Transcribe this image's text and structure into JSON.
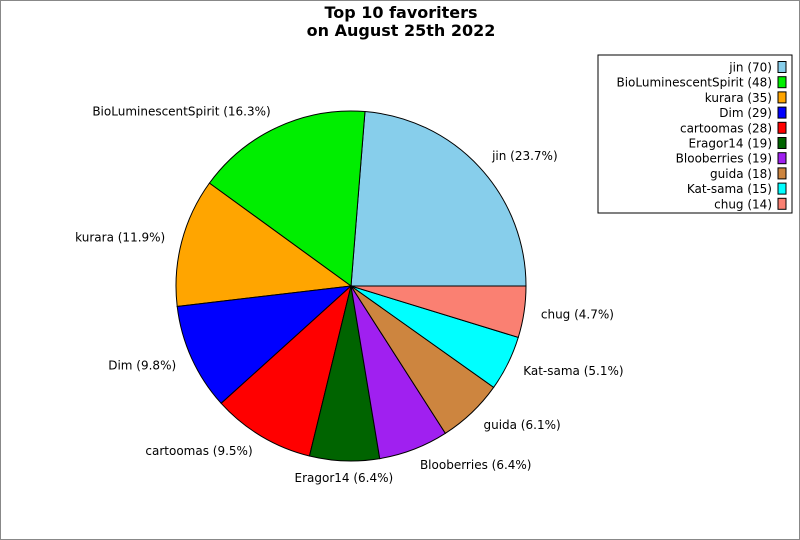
{
  "chart_data": {
    "type": "pie",
    "title": "Top 10 favoriters\non August 25th 2022",
    "start_angle_deg": 0,
    "direction": "counterclockwise",
    "legend_placement": "top-right",
    "categories": [
      "jin",
      "BioLuminescentSpirit",
      "kurara",
      "Dim",
      "cartoomas",
      "Eragor14",
      "Blooberries",
      "guida",
      "Kat-sama",
      "chug"
    ],
    "values": [
      70,
      48,
      35,
      29,
      28,
      19,
      19,
      18,
      15,
      14
    ],
    "slice_labels": [
      "jin (23.7%)",
      "BioLuminescentSpirit (16.3%)",
      "kurara (11.9%)",
      "Dim (9.8%)",
      "cartoomas (9.5%)",
      "Eragor14 (6.4%)",
      "Blooberries (6.4%)",
      "guida (6.1%)",
      "Kat-sama (5.1%)",
      "chug (4.7%)"
    ],
    "legend_labels": [
      "jin (70)",
      "BioLuminescentSpirit (48)",
      "kurara (35)",
      "Dim (29)",
      "cartoomas (28)",
      "Eragor14 (19)",
      "Blooberries (19)",
      "guida (18)",
      "Kat-sama (15)",
      "chug (14)"
    ],
    "colors": [
      "#87ceeb",
      "#00ee00",
      "#ffa500",
      "#0000ff",
      "#ff0000",
      "#006400",
      "#a020f0",
      "#cd853f",
      "#00ffff",
      "#fa8072"
    ]
  }
}
